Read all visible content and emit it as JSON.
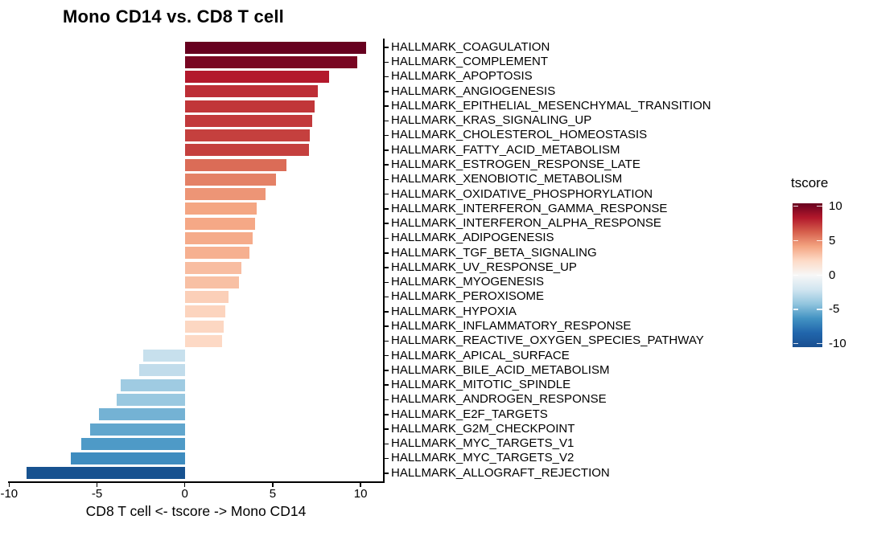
{
  "title": "Mono CD14 vs. CD8 T cell",
  "chart_data": {
    "type": "bar",
    "orientation": "horizontal",
    "title": "Mono CD14 vs. CD8 T cell",
    "xlabel": "CD8 T cell <- tscore -> Mono CD14",
    "ylabel": "",
    "xlim": [
      -10.1,
      11.3
    ],
    "x_ticks": [
      -10,
      -5,
      0,
      5,
      10
    ],
    "grid": false,
    "categories": [
      "HALLMARK_COAGULATION",
      "HALLMARK_COMPLEMENT",
      "HALLMARK_APOPTOSIS",
      "HALLMARK_ANGIOGENESIS",
      "HALLMARK_EPITHELIAL_MESENCHYMAL_TRANSITION",
      "HALLMARK_KRAS_SIGNALING_UP",
      "HALLMARK_CHOLESTEROL_HOMEOSTASIS",
      "HALLMARK_FATTY_ACID_METABOLISM",
      "HALLMARK_ESTROGEN_RESPONSE_LATE",
      "HALLMARK_XENOBIOTIC_METABOLISM",
      "HALLMARK_OXIDATIVE_PHOSPHORYLATION",
      "HALLMARK_INTERFERON_GAMMA_RESPONSE",
      "HALLMARK_INTERFERON_ALPHA_RESPONSE",
      "HALLMARK_ADIPOGENESIS",
      "HALLMARK_TGF_BETA_SIGNALING",
      "HALLMARK_UV_RESPONSE_UP",
      "HALLMARK_MYOGENESIS",
      "HALLMARK_PEROXISOME",
      "HALLMARK_HYPOXIA",
      "HALLMARK_INFLAMMATORY_RESPONSE",
      "HALLMARK_REACTIVE_OXYGEN_SPECIES_PATHWAY",
      "HALLMARK_APICAL_SURFACE",
      "HALLMARK_BILE_ACID_METABOLISM",
      "HALLMARK_MITOTIC_SPINDLE",
      "HALLMARK_ANDROGEN_RESPONSE",
      "HALLMARK_E2F_TARGETS",
      "HALLMARK_G2M_CHECKPOINT",
      "HALLMARK_MYC_TARGETS_V1",
      "HALLMARK_MYC_TARGETS_V2",
      "HALLMARK_ALLOGRAFT_REJECTION"
    ],
    "values": [
      10.3,
      9.8,
      8.2,
      7.55,
      7.4,
      7.25,
      7.1,
      7.05,
      5.8,
      5.2,
      4.6,
      4.1,
      4.0,
      3.85,
      3.7,
      3.2,
      3.1,
      2.5,
      2.3,
      2.2,
      2.1,
      -2.35,
      -2.6,
      -3.65,
      -3.9,
      -4.9,
      -5.4,
      -5.9,
      -6.5,
      -9.0
    ],
    "bar_colors": [
      "#67001f",
      "#790622",
      "#b3192c",
      "#bd2e36",
      "#c13639",
      "#c2393b",
      "#c5403e",
      "#c5403e",
      "#db6c57",
      "#e48166",
      "#ed9576",
      "#f4a683",
      "#f5a886",
      "#f5ab8a",
      "#f6b090",
      "#f8bda1",
      "#f8c0a4",
      "#fbcfb8",
      "#fcd4be",
      "#fcd7c2",
      "#fdd9c5",
      "#c7e0ed",
      "#c1dceb",
      "#9fcbe2",
      "#99c8e0",
      "#74b2d4",
      "#61a6cd",
      "#4e9ac7",
      "#3e8cbf",
      "#175290"
    ],
    "legend": {
      "title": "tscore",
      "position": "right",
      "ticks": [
        10,
        5,
        0,
        -5,
        -10
      ],
      "limits": [
        -10.5,
        10.5
      ],
      "gradient_top_to_bottom": [
        "#67001f",
        "#b2182b",
        "#d6604d",
        "#f4a582",
        "#fddbc7",
        "#f7f7f7",
        "#d1e5f0",
        "#92c5de",
        "#4393c3",
        "#2166ac",
        "#194f90"
      ]
    },
    "colors": {
      "axis": "#000000",
      "text": "#000000",
      "background": "#ffffff"
    }
  }
}
